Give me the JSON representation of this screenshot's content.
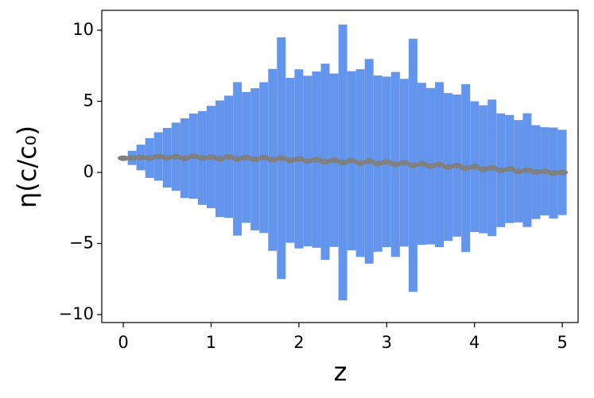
{
  "chart_data": {
    "type": "errorbar",
    "xlabel": "z",
    "ylabel": "η(c/c₀)",
    "x": [
      0.0,
      0.1,
      0.2,
      0.3,
      0.4,
      0.5,
      0.6,
      0.7,
      0.8,
      0.9,
      1.0,
      1.1,
      1.2,
      1.3,
      1.4,
      1.5,
      1.6,
      1.7,
      1.8,
      1.9,
      2.0,
      2.1,
      2.2,
      2.3,
      2.4,
      2.5,
      2.6,
      2.7,
      2.8,
      2.9,
      3.0,
      3.1,
      3.2,
      3.3,
      3.4,
      3.5,
      3.6,
      3.7,
      3.8,
      3.9,
      4.0,
      4.1,
      4.2,
      4.3,
      4.4,
      4.5,
      4.6,
      4.7,
      4.8,
      4.9,
      5.0
    ],
    "series": [
      {
        "color": "#6495ed",
        "point_color": "#808080",
        "values": [
          1.0,
          1.02,
          1.05,
          1.01,
          1.12,
          1.03,
          1.1,
          1.0,
          1.14,
          1.02,
          1.08,
          0.96,
          1.1,
          0.95,
          1.05,
          0.92,
          1.04,
          0.88,
          1.0,
          0.85,
          0.95,
          0.8,
          0.9,
          0.75,
          0.86,
          0.7,
          0.82,
          0.66,
          0.78,
          0.62,
          0.74,
          0.56,
          0.68,
          0.5,
          0.6,
          0.44,
          0.55,
          0.38,
          0.48,
          0.3,
          0.4,
          0.22,
          0.32,
          0.15,
          0.24,
          0.08,
          0.16,
          0.02,
          0.08,
          -0.04,
          0.0
        ],
        "errors": [
          0.0,
          0.5,
          0.9,
          1.4,
          1.7,
          2.1,
          2.4,
          2.8,
          3.0,
          3.3,
          3.6,
          4.1,
          4.3,
          5.4,
          4.6,
          5.0,
          5.3,
          6.4,
          8.5,
          5.8,
          6.3,
          6.0,
          6.2,
          6.9,
          6.1,
          9.7,
          6.3,
          6.6,
          7.2,
          6.2,
          6.0,
          6.5,
          5.9,
          8.9,
          5.7,
          5.5,
          5.8,
          5.2,
          5.0,
          5.9,
          4.6,
          4.5,
          4.8,
          4.0,
          3.8,
          3.6,
          4.0,
          3.3,
          3.1,
          3.2,
          3.0
        ]
      }
    ],
    "xlim": [
      -0.245,
      5.18
    ],
    "ylim": [
      -10.56,
      11.4
    ],
    "xticks": [
      0,
      1,
      2,
      3,
      4,
      5
    ],
    "yticks": [
      {
        "value": -10,
        "label": "−10"
      },
      {
        "value": -5,
        "label": "−5"
      },
      0,
      5,
      10
    ]
  }
}
